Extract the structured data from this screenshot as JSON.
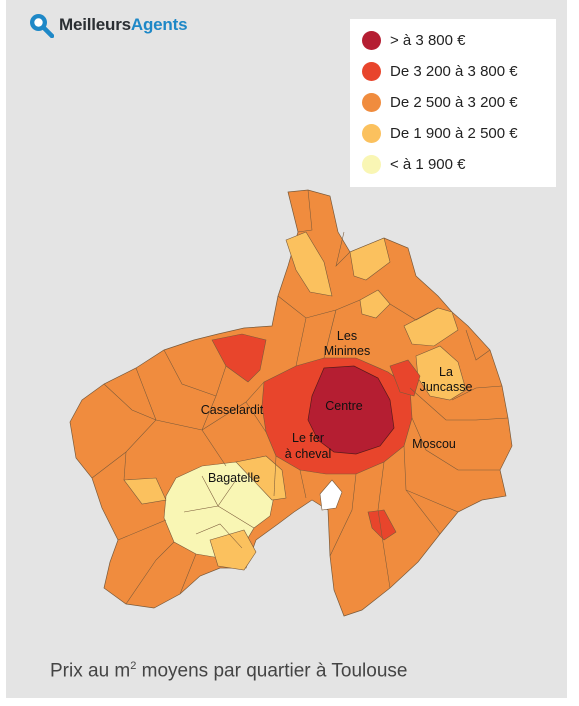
{
  "brand": {
    "part1": "Meilleurs",
    "part2": "Agents",
    "icon": "search-icon"
  },
  "legend": [
    {
      "label": "> à 3 800 €",
      "color": "#b51e32"
    },
    {
      "label": "De 3 200 à 3 800 €",
      "color": "#e8452c"
    },
    {
      "label": "De 2 500 à 3 200 €",
      "color": "#f08c3e"
    },
    {
      "label": "De 1 900 à 2 500 €",
      "color": "#fbc15e"
    },
    {
      "label": "< à 1 900 €",
      "color": "#f9f6b4"
    }
  ],
  "districts": [
    {
      "name": "Les",
      "name2": "Minimes"
    },
    {
      "name": "La",
      "name2": "Juncasse"
    },
    {
      "name": "Casselardit"
    },
    {
      "name": "Centre"
    },
    {
      "name": "Le fer",
      "name2": "à cheval"
    },
    {
      "name": "Moscou"
    },
    {
      "name": "Bagatelle"
    }
  ],
  "caption": {
    "before": "Prix au m",
    "sup": "2",
    "after": " moyens par quartier à Toulouse"
  }
}
